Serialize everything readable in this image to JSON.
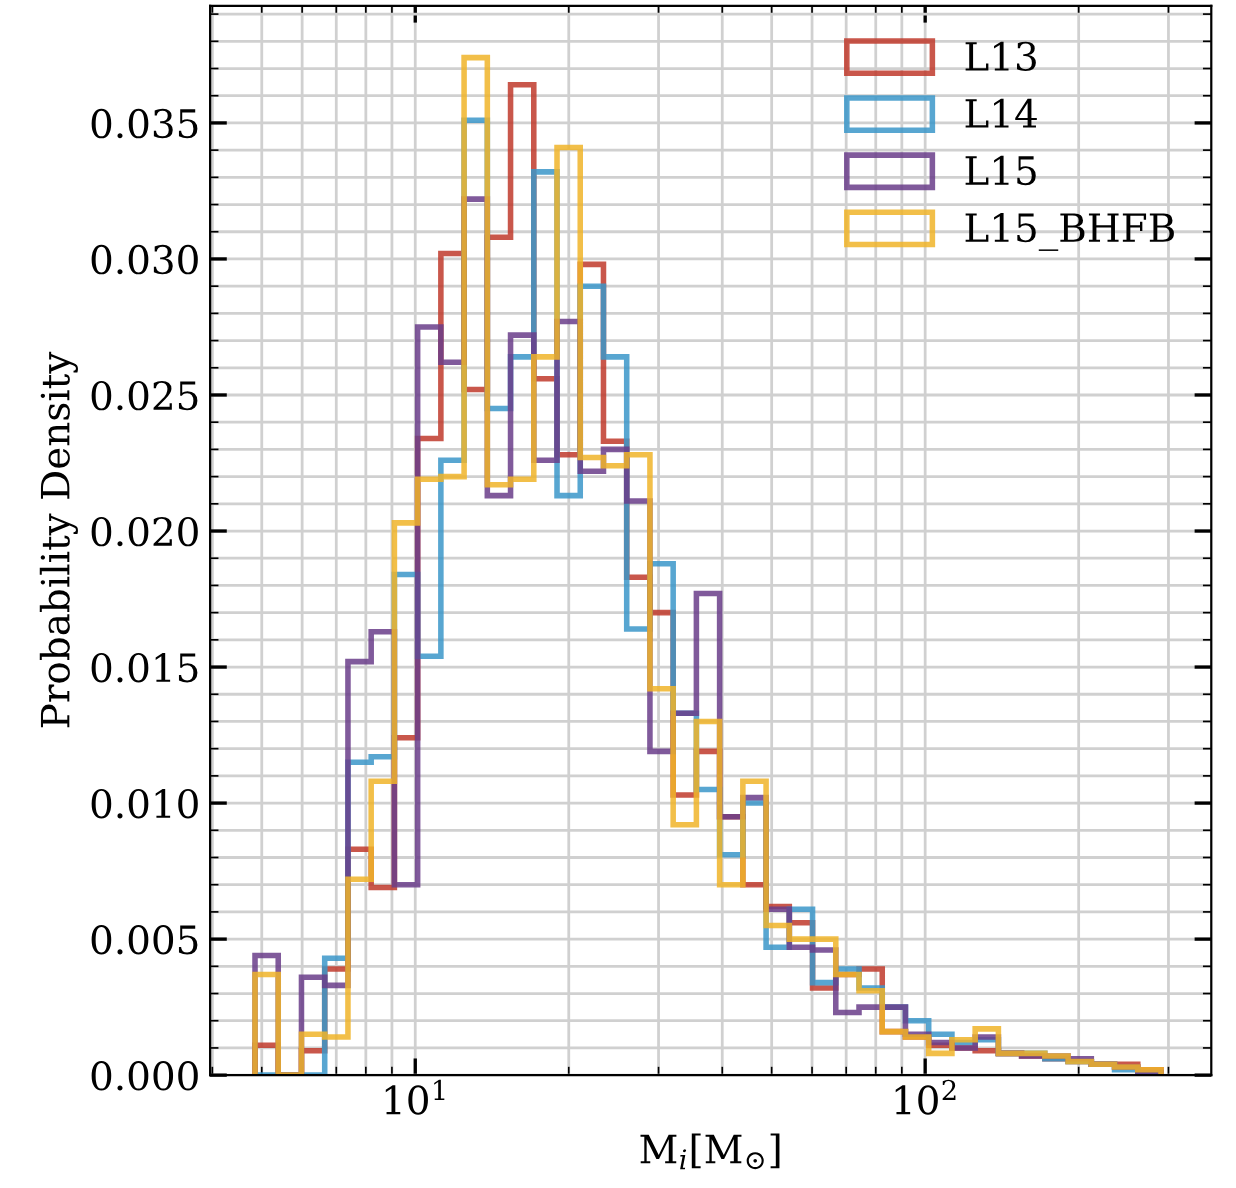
{
  "chart_data": {
    "type": "histogram",
    "xlabel": "M$_{i}$[M$_{⊙}$]",
    "ylabel": "Probability Density",
    "log": "x",
    "grid": true,
    "legend": "top right",
    "bins": [
      4.85,
      5.386,
      5.982,
      6.644,
      7.379,
      8.195,
      9.101,
      10.108,
      11.226,
      12.467,
      13.846,
      15.377,
      17.078,
      18.967,
      21.065,
      23.395,
      25.982,
      28.856,
      32.047,
      35.592,
      39.528,
      43.9,
      48.755,
      54.147,
      60.136,
      66.787,
      74.174,
      82.377,
      91.488,
      101.61,
      112.85,
      125.33,
      139.19,
      154.58,
      171.68,
      190.67,
      211.76,
      235.18,
      261.19,
      290.08
    ],
    "series": [
      {
        "name": "L13",
        "color": "#c0392b",
        "values": [
          0.0011,
          0,
          0.0009,
          0.0039,
          0.0083,
          0.0069,
          0.0124,
          0.0234,
          0.0302,
          0.0252,
          0.0308,
          0.0364,
          0.0256,
          0.0228,
          0.0298,
          0.0233,
          0.0183,
          0.017,
          0.0103,
          0.0119,
          0.0095,
          0.007,
          0.0062,
          0.0056,
          0.0032,
          0.0037,
          0.0039,
          0.0016,
          0.0014,
          0.0011,
          0.001,
          0.0009,
          0.0008,
          0.0007,
          0.0006,
          0.0005,
          0.0004,
          0.0004,
          0.0002
        ]
      },
      {
        "name": "L14",
        "color": "#3b97c9",
        "values": [
          0,
          0,
          0,
          0.0043,
          0.0115,
          0.0117,
          0.0184,
          0.0154,
          0.0226,
          0.0351,
          0.0245,
          0.0264,
          0.0332,
          0.0213,
          0.029,
          0.0264,
          0.0164,
          0.0188,
          0.0133,
          0.0105,
          0.0081,
          0.01,
          0.0047,
          0.0061,
          0.0034,
          0.0039,
          0.0032,
          0.0025,
          0.002,
          0.0015,
          0.0012,
          0.0013,
          0.0008,
          0.0008,
          0.0006,
          0.0005,
          0.0004,
          0.0002,
          0
        ]
      },
      {
        "name": "L15",
        "color": "#6a3d8a",
        "values": [
          0.0044,
          0,
          0.0036,
          0.0033,
          0.0152,
          0.0163,
          0.007,
          0.0275,
          0.0262,
          0.0322,
          0.0213,
          0.0272,
          0.0226,
          0.0277,
          0.0222,
          0.023,
          0.0211,
          0.0119,
          0.0133,
          0.0177,
          0.0095,
          0.0102,
          0.0061,
          0.0047,
          0.0046,
          0.0023,
          0.0025,
          0.0025,
          0.0015,
          0.0012,
          0.001,
          0.0014,
          0.0008,
          0.0007,
          0.0007,
          0.0006,
          0.0004,
          0.0003,
          0.0001
        ]
      },
      {
        "name": "L15_BHFB",
        "color": "#f0b429",
        "values": [
          0.0037,
          0,
          0.0015,
          0.0014,
          0.0072,
          0.0108,
          0.0203,
          0.0219,
          0.022,
          0.0374,
          0.0217,
          0.0219,
          0.0264,
          0.0341,
          0.0227,
          0.0224,
          0.0228,
          0.0142,
          0.0092,
          0.013,
          0.007,
          0.0108,
          0.0055,
          0.005,
          0.005,
          0.0037,
          0.0031,
          0.0016,
          0.0014,
          0.0008,
          0.0013,
          0.0017,
          0.0008,
          0.0008,
          0.0007,
          0.0005,
          0.0004,
          0.0003,
          0.0002
        ]
      }
    ],
    "xlim": [
      3.96,
      364
    ],
    "xticks": [
      {
        "value": 10,
        "label": "10$^{1}$"
      },
      {
        "value": 100,
        "label": "10$^{2}$"
      }
    ],
    "ylim": [
      0,
      0.0393
    ],
    "yticks": [
      {
        "value": 0,
        "label": "0.000"
      },
      {
        "value": 0.005,
        "label": "0.005"
      },
      {
        "value": 0.01,
        "label": "0.010"
      },
      {
        "value": 0.015,
        "label": "0.015"
      },
      {
        "value": 0.02,
        "label": "0.020"
      },
      {
        "value": 0.025,
        "label": "0.025"
      },
      {
        "value": 0.03,
        "label": "0.030"
      },
      {
        "value": 0.035,
        "label": "0.035"
      }
    ]
  }
}
